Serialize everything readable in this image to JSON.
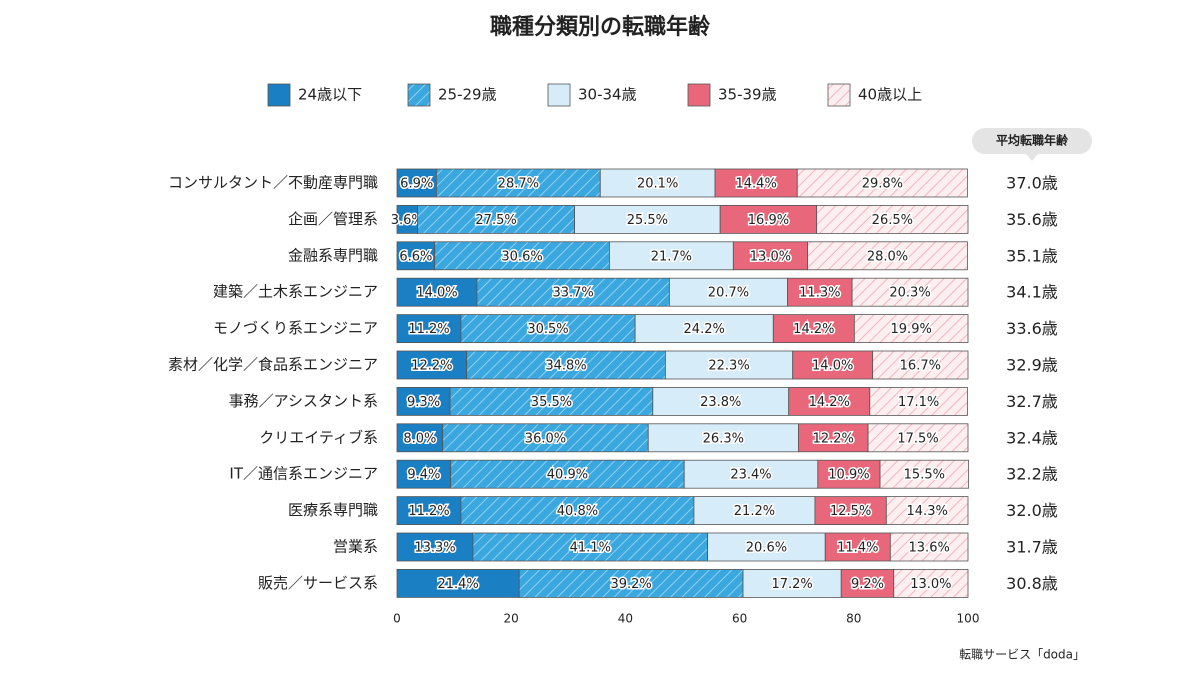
{
  "chart_data": {
    "type": "stacked-bar-horizontal",
    "title": "職種分類別の転職年齢",
    "categories": [
      "コンサルタント／不動産専門職",
      "企画／管理系",
      "金融系専門職",
      "建築／土木系エンジニア",
      "モノづくり系エンジニア",
      "素材／化学／食品系エンジニア",
      "事務／アシスタント系",
      "クリエイティブ系",
      "IT／通信系エンジニア",
      "医療系専門職",
      "営業系",
      "販売／サービス系"
    ],
    "series": [
      {
        "name": "24歳以下",
        "color": "#1b7fc4",
        "hatch": false,
        "values": [
          6.9,
          3.6,
          6.6,
          14.0,
          11.2,
          12.2,
          9.3,
          8.0,
          9.4,
          11.2,
          13.3,
          21.4
        ],
        "value_labels": [
          "6.9%",
          "3.6%",
          "6.6%",
          "14.0%",
          "11.2%",
          "12.2%",
          "9.3%",
          "8.0%",
          "9.4%",
          "11.2%",
          "13.3%",
          "21.4%"
        ]
      },
      {
        "name": "25-29歳",
        "color": "#3ba7df",
        "hatch": true,
        "hatch_color": "#8fd0f2",
        "values": [
          28.7,
          27.5,
          30.6,
          33.7,
          30.5,
          34.8,
          35.5,
          36.0,
          40.9,
          40.8,
          41.1,
          39.2
        ],
        "value_labels": [
          "28.7%",
          "27.5%",
          "30.6%",
          "33.7%",
          "30.5%",
          "34.8%",
          "35.5%",
          "36.0%",
          "40.9%",
          "40.8%",
          "41.1%",
          "39.2%"
        ]
      },
      {
        "name": "30-34歳",
        "color": "#d6ecf9",
        "hatch": false,
        "values": [
          20.1,
          25.5,
          21.7,
          20.7,
          24.2,
          22.3,
          23.8,
          26.3,
          23.4,
          21.2,
          20.6,
          17.2
        ],
        "value_labels": [
          "20.1%",
          "25.5%",
          "21.7%",
          "20.7%",
          "24.2%",
          "22.3%",
          "23.8%",
          "26.3%",
          "23.4%",
          "21.2%",
          "20.6%",
          "17.2%"
        ]
      },
      {
        "name": "35-39歳",
        "color": "#e8677b",
        "hatch": false,
        "values": [
          14.4,
          16.9,
          13.0,
          11.3,
          14.2,
          14.0,
          14.2,
          12.2,
          10.9,
          12.5,
          11.4,
          9.2
        ],
        "value_labels": [
          "14.4%",
          "16.9%",
          "13.0%",
          "11.3%",
          "14.2%",
          "14.0%",
          "14.2%",
          "12.2%",
          "10.9%",
          "12.5%",
          "11.4%",
          "9.2%"
        ]
      },
      {
        "name": "40歳以上",
        "color": "#fdeef0",
        "hatch": true,
        "hatch_color": "#f2b6c0",
        "values": [
          29.8,
          26.5,
          28.0,
          20.3,
          19.9,
          16.7,
          17.1,
          17.5,
          15.5,
          14.3,
          13.6,
          13.0
        ],
        "value_labels": [
          "29.8%",
          "26.5%",
          "28.0%",
          "20.3%",
          "19.9%",
          "16.7%",
          "17.1%",
          "17.5%",
          "15.5%",
          "14.3%",
          "13.6%",
          "13.0%"
        ]
      }
    ],
    "xlim": [
      0,
      100
    ],
    "xticks": [
      0,
      20,
      40,
      60,
      80,
      100
    ],
    "average": {
      "title": "平均転職年齢",
      "values": [
        37.0,
        35.6,
        35.1,
        34.1,
        33.6,
        32.9,
        32.7,
        32.4,
        32.2,
        32.0,
        31.7,
        30.8
      ],
      "value_labels": [
        "37.0歳",
        "35.6歳",
        "35.1歳",
        "34.1歳",
        "33.6歳",
        "32.9歳",
        "32.7歳",
        "32.4歳",
        "32.2歳",
        "32.0歳",
        "31.7歳",
        "30.8歳"
      ]
    },
    "source": "転職サービス「doda」"
  }
}
